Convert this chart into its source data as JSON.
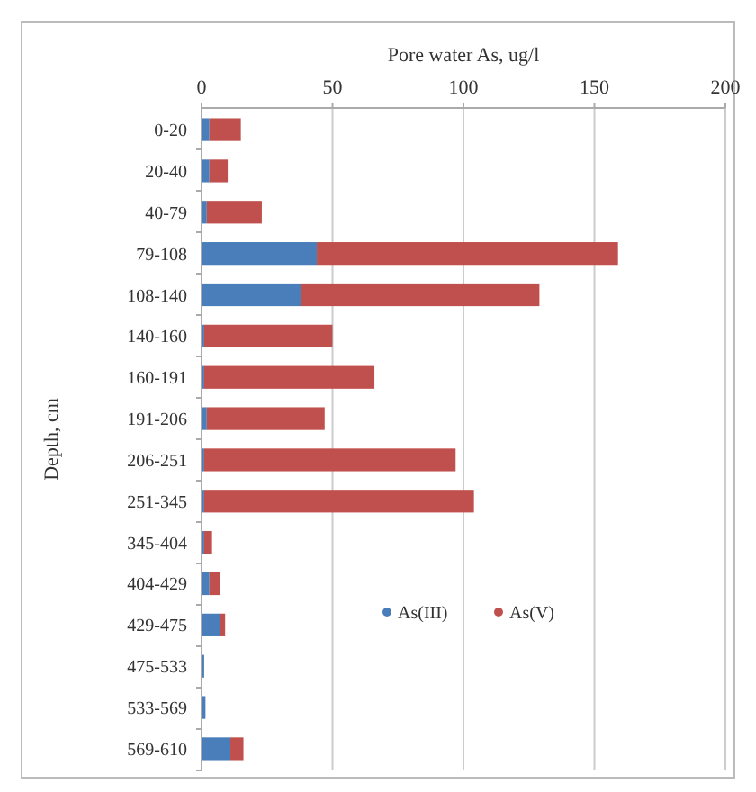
{
  "chart_data": {
    "type": "bar",
    "orientation": "horizontal",
    "stacked": true,
    "xlabel": "Pore water As, ug/l",
    "ylabel": "Depth, cm",
    "categories": [
      "0-20",
      "20-40",
      "40-79",
      "79-108",
      "108-140",
      "140-160",
      "160-191",
      "191-206",
      "206-251",
      "251-345",
      "345-404",
      "404-429",
      "429-475",
      "475-533",
      "533-569",
      "569-610"
    ],
    "series": [
      {
        "name": "As(III)",
        "color": "#4a7ebb",
        "values": [
          3,
          3,
          2,
          44,
          38,
          1,
          1,
          2,
          1,
          1,
          1,
          3,
          7,
          1,
          1.5,
          11
        ]
      },
      {
        "name": "As(V)",
        "color": "#c0504d",
        "values": [
          12,
          7,
          21,
          115,
          91,
          49,
          65,
          45,
          96,
          103,
          3,
          4,
          2,
          0,
          0,
          5
        ]
      }
    ],
    "xlim": [
      0,
      200
    ],
    "xticks": [
      0,
      50,
      100,
      150,
      200
    ],
    "grid": "x",
    "legend": "right"
  }
}
